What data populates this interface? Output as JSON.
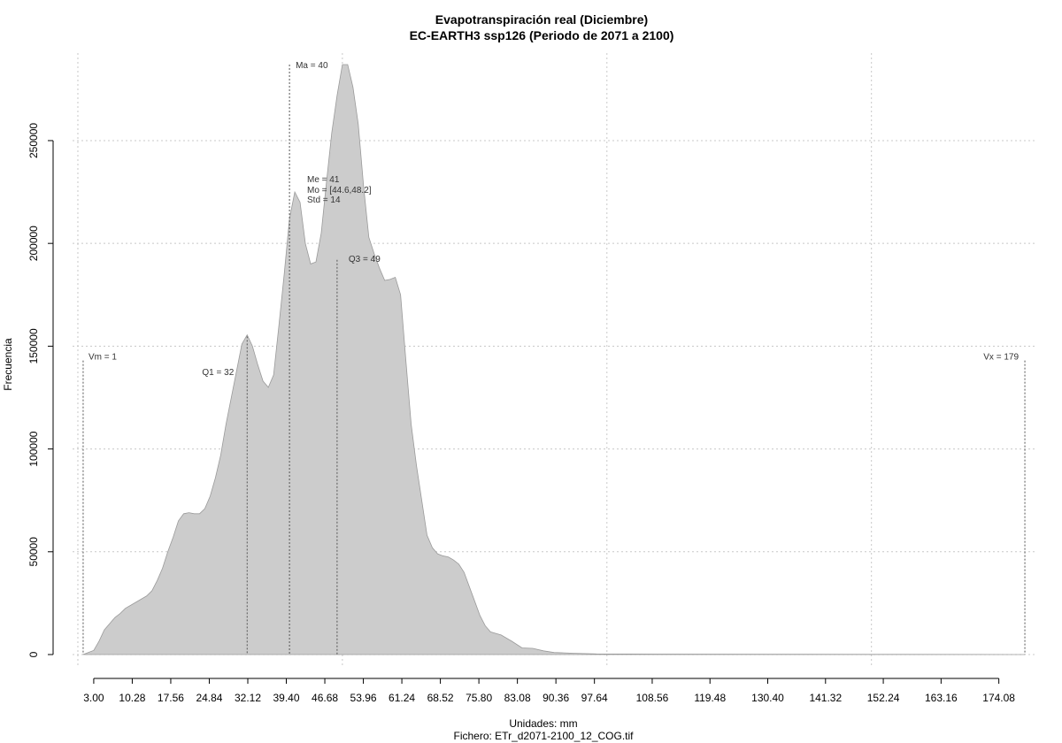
{
  "chart_data": {
    "type": "area",
    "title": "Evapotranspiración real (Diciembre)",
    "subtitle": "EC-EARTH3 ssp126 (Periodo de 2071 a 2100)",
    "xlabel": "Unidades: mm",
    "ylabel": "Frecuencia",
    "footer": "Fichero: ETr_d2071-2100_12_COG.tif",
    "xlim": [
      -1,
      181
    ],
    "ylim": [
      0,
      290000
    ],
    "grid": true,
    "fill_color": "#cccccc",
    "x_ticks": [
      "3.00",
      "10.28",
      "17.56",
      "24.84",
      "32.12",
      "39.40",
      "46.68",
      "53.96",
      "61.24",
      "68.52",
      "75.80",
      "83.08",
      "90.36",
      "97.64",
      "108.56",
      "119.48",
      "130.40",
      "141.32",
      "152.24",
      "163.16",
      "174.08"
    ],
    "x_tick_values": [
      3.0,
      10.28,
      17.56,
      24.84,
      32.12,
      39.4,
      46.68,
      53.96,
      61.24,
      68.52,
      75.8,
      83.08,
      90.36,
      97.64,
      108.56,
      119.48,
      130.4,
      141.32,
      152.24,
      163.16,
      174.08
    ],
    "y_ticks": [
      "0",
      "50000",
      "100000",
      "150000",
      "200000",
      "250000"
    ],
    "y_tick_values": [
      0,
      50000,
      100000,
      150000,
      200000,
      250000
    ],
    "x_grid": [
      0,
      50,
      100,
      150
    ],
    "y_grid": [
      0,
      50000,
      100000,
      150000,
      200000,
      250000
    ],
    "x": [
      1,
      2,
      3,
      4,
      5,
      6,
      7,
      8,
      9,
      10,
      11,
      12,
      13,
      14,
      15,
      16,
      17,
      18,
      19,
      20,
      21,
      22,
      23,
      24,
      25,
      26,
      27,
      28,
      29,
      30,
      31,
      32,
      33,
      34,
      35,
      36,
      37,
      38,
      39,
      40,
      41,
      42,
      43,
      44,
      45,
      46,
      47,
      48,
      49,
      50,
      51,
      52,
      53,
      54,
      55,
      56,
      57,
      58,
      59,
      60,
      61,
      62,
      63,
      64,
      65,
      66,
      67,
      68,
      69,
      70,
      71,
      72,
      73,
      74,
      75,
      76,
      77,
      78,
      80,
      82,
      84,
      86,
      88,
      90,
      94,
      98,
      110,
      130,
      150,
      170,
      179
    ],
    "y": [
      0,
      1000,
      2000,
      6500,
      12000,
      15000,
      18000,
      20000,
      22500,
      24000,
      25500,
      27000,
      28500,
      31000,
      36000,
      42000,
      50000,
      57000,
      65000,
      68500,
      69000,
      68500,
      68500,
      71000,
      77000,
      86000,
      97000,
      112000,
      125000,
      138000,
      151000,
      155500,
      150000,
      141000,
      133000,
      130000,
      136000,
      160000,
      185000,
      212000,
      225000,
      220000,
      200000,
      190000,
      191000,
      205000,
      230000,
      254000,
      272000,
      287000,
      287000,
      276000,
      258000,
      228000,
      203000,
      195000,
      188000,
      182000,
      182500,
      183500,
      175000,
      143000,
      112000,
      92000,
      75000,
      58000,
      52000,
      49000,
      48000,
      47500,
      46000,
      44000,
      40000,
      33000,
      26000,
      19000,
      14000,
      11000,
      9500,
      6500,
      3200,
      3000,
      1800,
      1000,
      600,
      300,
      200,
      150,
      100,
      50,
      0
    ]
  },
  "markers": [
    {
      "x": 1,
      "label": "Vm = 1"
    },
    {
      "x": 32,
      "label": "Q1 = 32"
    },
    {
      "x": 40,
      "label": "Ma = 40"
    },
    {
      "x": 49,
      "label": "Q3 = 49"
    },
    {
      "x": 179,
      "label": "Vx = 179"
    }
  ],
  "stats": [
    "Me = 41",
    "Mo = [44.6,48.2]",
    "Std = 14"
  ]
}
